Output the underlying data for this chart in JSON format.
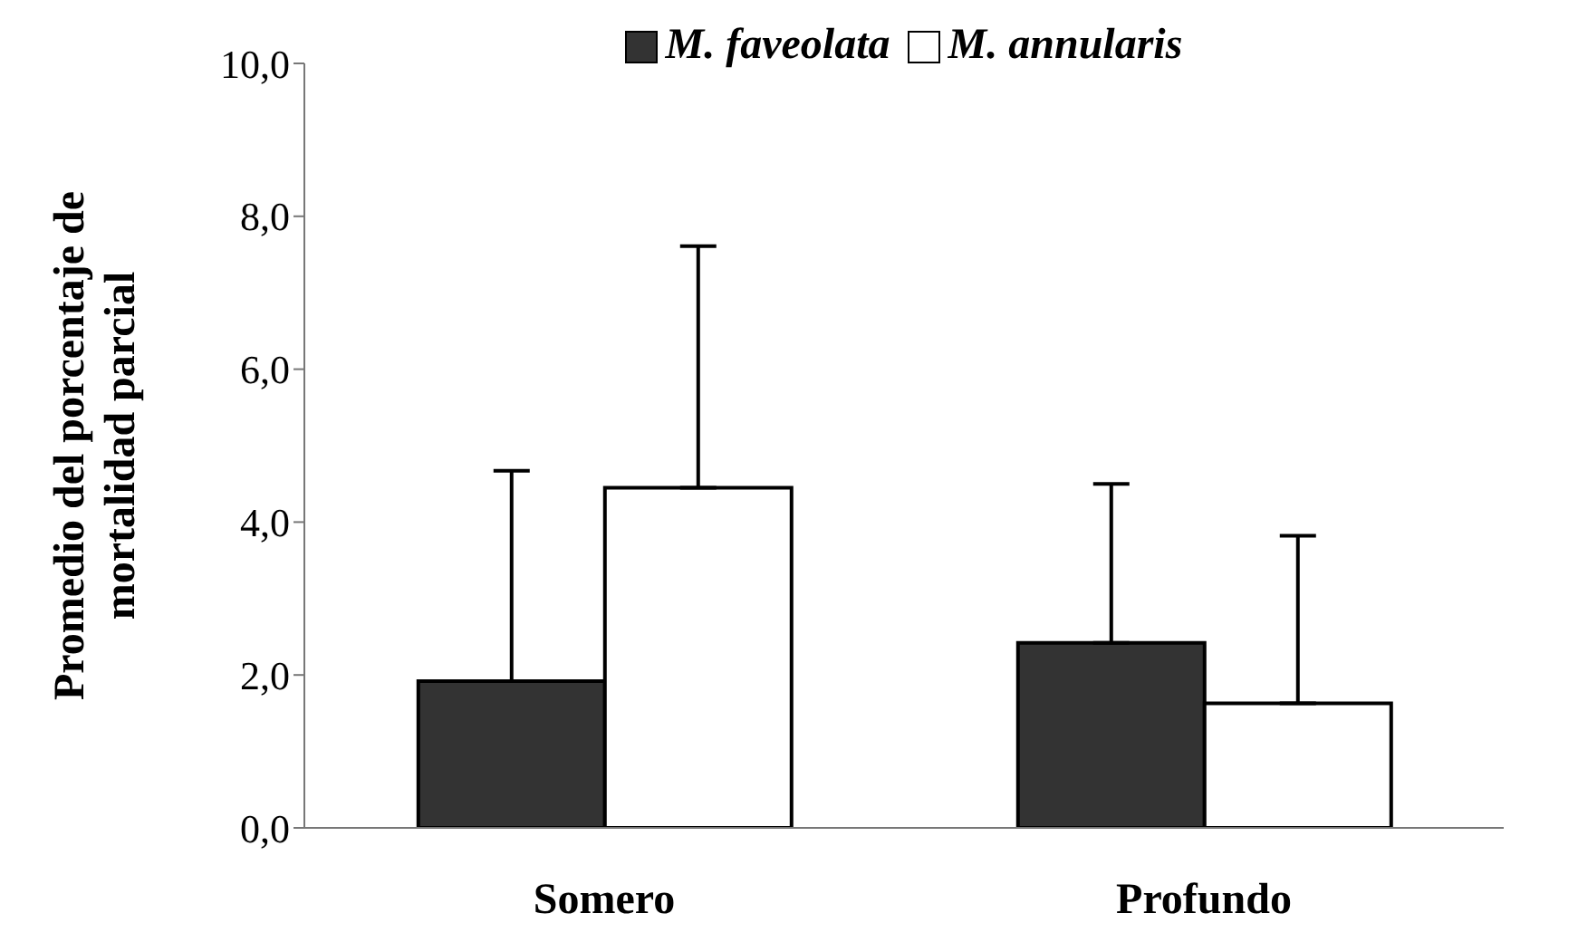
{
  "chart_data": {
    "type": "bar",
    "categories": [
      "Somero",
      "Profundo"
    ],
    "ylabel": "Promedio del porcentaje de\nmortalidad parcial",
    "series": [
      {
        "name": "M. faveolata",
        "color": "#333333",
        "values": [
          1.92,
          2.42
        ],
        "errors": [
          [
            1.92,
            4.67
          ],
          [
            2.42,
            4.5
          ]
        ]
      },
      {
        "name": "M. annularis",
        "color": "#ffffff",
        "values": [
          4.45,
          1.63
        ],
        "errors": [
          [
            4.45,
            7.61
          ],
          [
            1.63,
            3.82
          ]
        ]
      }
    ],
    "ylim": [
      0,
      10
    ],
    "yticks": [
      {
        "value": 0,
        "label": "0,0"
      },
      {
        "value": 2,
        "label": "2,0"
      },
      {
        "value": 4,
        "label": "4,0"
      },
      {
        "value": 6,
        "label": "6,0"
      },
      {
        "value": 8,
        "label": "8,0"
      },
      {
        "value": 10,
        "label": "10,0"
      }
    ],
    "grid": false,
    "legend": "top"
  }
}
